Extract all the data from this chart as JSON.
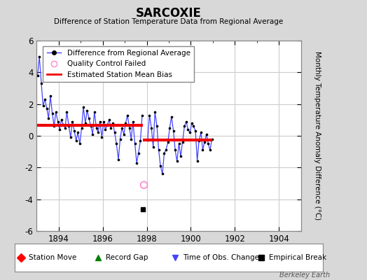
{
  "title": "SARCOXIE",
  "subtitle": "Difference of Station Temperature Data from Regional Average",
  "ylabel": "Monthly Temperature Anomaly Difference (°C)",
  "xlabel_years": [
    1894,
    1896,
    1898,
    1900,
    1902,
    1904
  ],
  "xlim": [
    1893.0,
    1905.0
  ],
  "ylim": [
    -6,
    6
  ],
  "yticks": [
    -4,
    -2,
    0,
    2,
    4
  ],
  "background_color": "#d8d8d8",
  "plot_bg_color": "#ffffff",
  "grid_color": "#cccccc",
  "line_color": "#4444ff",
  "dot_color": "#000000",
  "bias_color": "#ee0000",
  "qc_color": "#ff88cc",
  "watermark": "Berkeley Earth",
  "segment1_bias": 0.65,
  "segment2_bias": -0.25,
  "break_x": 1897.83,
  "break_marker_x": 1897.83,
  "break_marker_y": -4.65,
  "data_x": [
    1893.04,
    1893.12,
    1893.21,
    1893.29,
    1893.37,
    1893.46,
    1893.54,
    1893.62,
    1893.71,
    1893.79,
    1893.87,
    1893.96,
    1894.04,
    1894.12,
    1894.21,
    1894.29,
    1894.37,
    1894.46,
    1894.54,
    1894.62,
    1894.71,
    1894.79,
    1894.87,
    1894.96,
    1895.04,
    1895.12,
    1895.21,
    1895.29,
    1895.37,
    1895.46,
    1895.54,
    1895.62,
    1895.71,
    1895.79,
    1895.87,
    1895.96,
    1896.04,
    1896.12,
    1896.21,
    1896.29,
    1896.37,
    1896.46,
    1896.54,
    1896.62,
    1896.71,
    1896.79,
    1896.87,
    1896.96,
    1897.04,
    1897.12,
    1897.21,
    1897.29,
    1897.37,
    1897.46,
    1897.54,
    1897.62,
    1897.71,
    1897.79,
    1898.04,
    1898.12,
    1898.21,
    1898.29,
    1898.37,
    1898.46,
    1898.54,
    1898.62,
    1898.71,
    1898.79,
    1898.87,
    1898.96,
    1899.04,
    1899.12,
    1899.21,
    1899.29,
    1899.37,
    1899.46,
    1899.54,
    1899.62,
    1899.71,
    1899.79,
    1899.87,
    1899.96,
    1900.04,
    1900.12,
    1900.21,
    1900.29,
    1900.37,
    1900.46,
    1900.54,
    1900.62,
    1900.71,
    1900.79,
    1900.87,
    1900.96
  ],
  "data_y": [
    3.8,
    5.0,
    3.3,
    1.9,
    2.3,
    1.7,
    1.1,
    2.5,
    1.4,
    0.6,
    1.5,
    0.9,
    0.4,
    1.0,
    0.7,
    0.5,
    1.5,
    0.6,
    -0.1,
    0.9,
    0.3,
    -0.3,
    0.2,
    -0.5,
    0.5,
    1.8,
    0.8,
    1.6,
    1.1,
    0.6,
    0.1,
    1.5,
    0.5,
    0.2,
    0.9,
    -0.1,
    0.9,
    0.4,
    0.7,
    1.0,
    0.5,
    0.8,
    0.2,
    -0.5,
    -1.5,
    -0.2,
    0.5,
    0.1,
    0.8,
    1.3,
    0.5,
    -0.2,
    0.9,
    -0.5,
    -1.7,
    -1.1,
    -0.3,
    1.3,
    -0.25,
    1.3,
    0.5,
    -0.7,
    1.5,
    0.6,
    -0.9,
    -1.9,
    -2.4,
    -1.1,
    -0.9,
    -0.4,
    0.5,
    1.2,
    0.3,
    -0.9,
    -1.6,
    -0.5,
    -1.3,
    -0.4,
    0.6,
    0.9,
    0.4,
    0.2,
    0.8,
    0.6,
    0.3,
    -1.6,
    -0.3,
    0.2,
    -0.9,
    -0.4,
    0.1,
    -0.5,
    -0.9,
    -0.2
  ],
  "qc_x": 1897.87,
  "qc_y": -3.1,
  "seg1_x_start": 1893.0,
  "seg1_x_end": 1897.83,
  "seg2_x_start": 1897.83,
  "seg2_x_end": 1900.96
}
